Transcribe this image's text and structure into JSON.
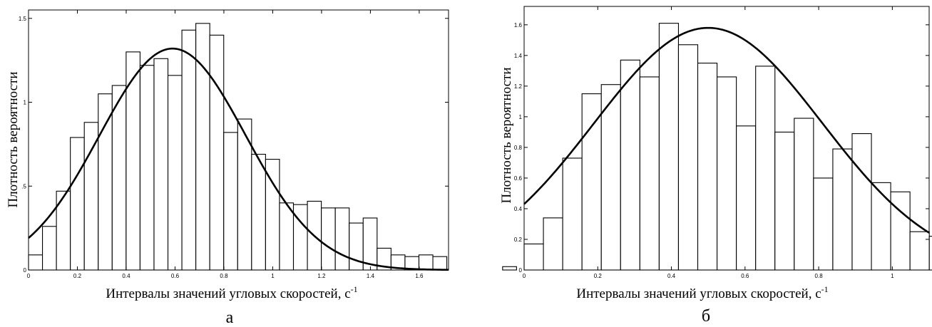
{
  "chart_data": [
    {
      "type": "bar",
      "panel_label": "а",
      "xlabel": "Интервалы значений угловых скоростей, с",
      "xlabel_sup": "-1",
      "ylabel": "Плотность вероятности",
      "xlim": [
        0,
        1.72
      ],
      "ylim": [
        0,
        1.55
      ],
      "xticks": [
        0,
        0.2,
        0.4,
        0.6,
        0.8,
        1,
        1.2,
        1.4,
        1.6
      ],
      "xtick_labels": [
        "0",
        "0.2",
        "0.4",
        "0.6",
        "0.8",
        "1",
        "1.2",
        "1.4",
        "1.6"
      ],
      "yticks": [
        0,
        0.5,
        1,
        1.5
      ],
      "ytick_labels": [
        "0",
        ".5",
        "1",
        "1.5"
      ],
      "bin_width": 0.0571,
      "bin_start": 0,
      "values": [
        0.09,
        0.26,
        0.47,
        0.79,
        0.88,
        1.05,
        1.1,
        1.3,
        1.22,
        1.26,
        1.16,
        1.43,
        1.47,
        1.4,
        0.82,
        0.9,
        0.69,
        0.66,
        0.4,
        0.39,
        0.41,
        0.37,
        0.37,
        0.28,
        0.31,
        0.13,
        0.09,
        0.08,
        0.09,
        0.08,
        0.0,
        0.0,
        0.0,
        0.0,
        0.02
      ],
      "curve": {
        "mean": 0.59,
        "std": 0.3,
        "peak": 1.32
      },
      "grid": false
    },
    {
      "type": "bar",
      "panel_label": "б",
      "xlabel": "Интервалы значений угловых скоростей, с",
      "xlabel_sup": "-1",
      "ylabel": "Плотность вероятности",
      "xlim": [
        0,
        1.1
      ],
      "ylim": [
        0,
        1.72
      ],
      "xticks": [
        0,
        0.2,
        0.4,
        0.6,
        0.8,
        1
      ],
      "xtick_labels": [
        "0",
        "0.2",
        "0.4",
        "0.6",
        "0.8",
        "1"
      ],
      "yticks": [
        0,
        0.2,
        0.4,
        0.6,
        0.8,
        1,
        1.2,
        1.4,
        1.6
      ],
      "ytick_labels": [
        "0",
        "0.2",
        "0.4",
        "0.6",
        "0.8",
        "1",
        "1.2",
        "1.4",
        "1.6"
      ],
      "bin_width": 0.0524,
      "bin_start": 0,
      "values": [
        0.17,
        0.34,
        0.73,
        1.15,
        1.21,
        1.37,
        1.26,
        1.61,
        1.47,
        1.35,
        1.26,
        0.94,
        1.33,
        0.9,
        0.99,
        0.6,
        0.79,
        0.89,
        0.57,
        0.51,
        0.25,
        0.22
      ],
      "curve": {
        "mean": 0.5,
        "std": 0.31,
        "peak": 1.58
      },
      "grid": false
    }
  ]
}
